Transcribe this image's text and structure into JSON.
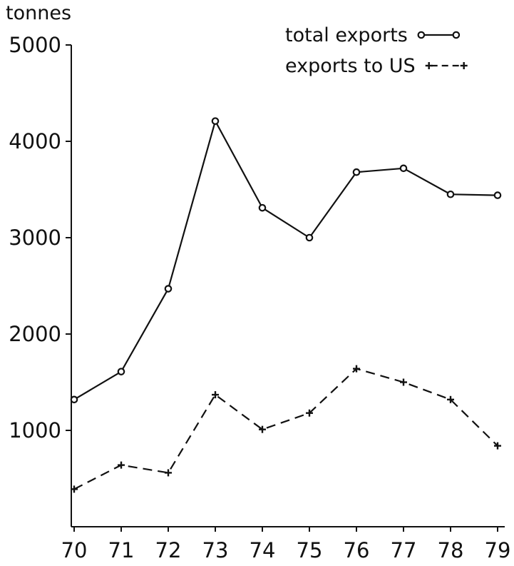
{
  "chart_data": {
    "type": "line",
    "title": "",
    "xlabel": "",
    "ylabel": "tonnes",
    "categories": [
      "70",
      "71",
      "72",
      "73",
      "74",
      "75",
      "76",
      "77",
      "78",
      "79"
    ],
    "ylim": [
      0,
      5000
    ],
    "yticks": [
      "1000",
      "2000",
      "3000",
      "4000",
      "5000"
    ],
    "grid": false,
    "legend_position": "top-right",
    "series": [
      {
        "name": "total exports",
        "marker": "circle",
        "line_style": "solid",
        "color": "#111111",
        "values": [
          1320,
          1610,
          2470,
          4210,
          3310,
          3000,
          3680,
          3720,
          3450,
          3440
        ]
      },
      {
        "name": "exports to US",
        "marker": "plus",
        "line_style": "dashed",
        "color": "#111111",
        "values": [
          390,
          640,
          560,
          1370,
          1010,
          1180,
          1640,
          1500,
          1320,
          840
        ]
      }
    ]
  }
}
